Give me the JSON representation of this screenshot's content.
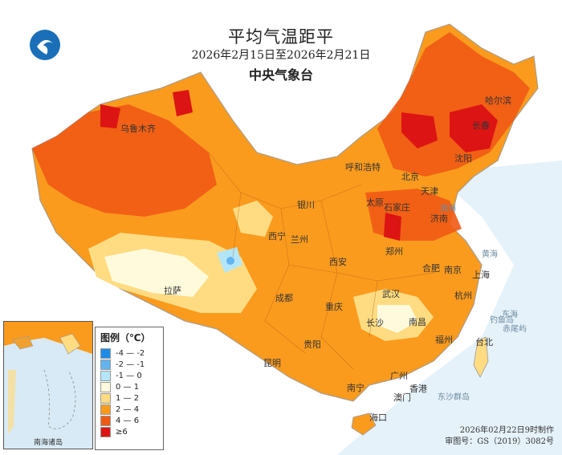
{
  "title": "平均气温距平",
  "date_range": "2026年2月15日至2026年2月21日",
  "agency": "中央气象台",
  "legend": {
    "title": "图例（℃）",
    "entries": [
      {
        "label": "-4 — -2",
        "color": "#1e8ce6"
      },
      {
        "label": "-2 — -1",
        "color": "#64b4f0"
      },
      {
        "label": "-1 — 0",
        "color": "#b4e6fa"
      },
      {
        "label": "0 — 1",
        "color": "#fffadc"
      },
      {
        "label": "1 — 2",
        "color": "#ffdc82"
      },
      {
        "label": "2 — 4",
        "color": "#fa9b1e"
      },
      {
        "label": "4 — 6",
        "color": "#f05a14"
      },
      {
        "label": "≥6",
        "color": "#dc1414"
      }
    ]
  },
  "cities": [
    "乌鲁木齐",
    "呼和浩特",
    "北京",
    "天津",
    "石家庄",
    "太原",
    "济南",
    "哈尔滨",
    "长春",
    "沈阳",
    "银川",
    "西宁",
    "兰州",
    "郑州",
    "西安",
    "合肥",
    "南京",
    "上海",
    "杭州",
    "成都",
    "重庆",
    "武汉",
    "长沙",
    "南昌",
    "拉萨",
    "贵阳",
    "昆明",
    "福州",
    "台北",
    "南宁",
    "广州",
    "香港",
    "澳门",
    "海口"
  ],
  "seas": [
    "渤海",
    "黄海",
    "东海",
    "赤尾屿",
    "钓鱼岛",
    "东沙群岛"
  ],
  "inset_label": "南海诸岛",
  "footer": {
    "issued": "2026年02月22日9时制作",
    "map_no": "审图号：GS（2019）3082号"
  }
}
